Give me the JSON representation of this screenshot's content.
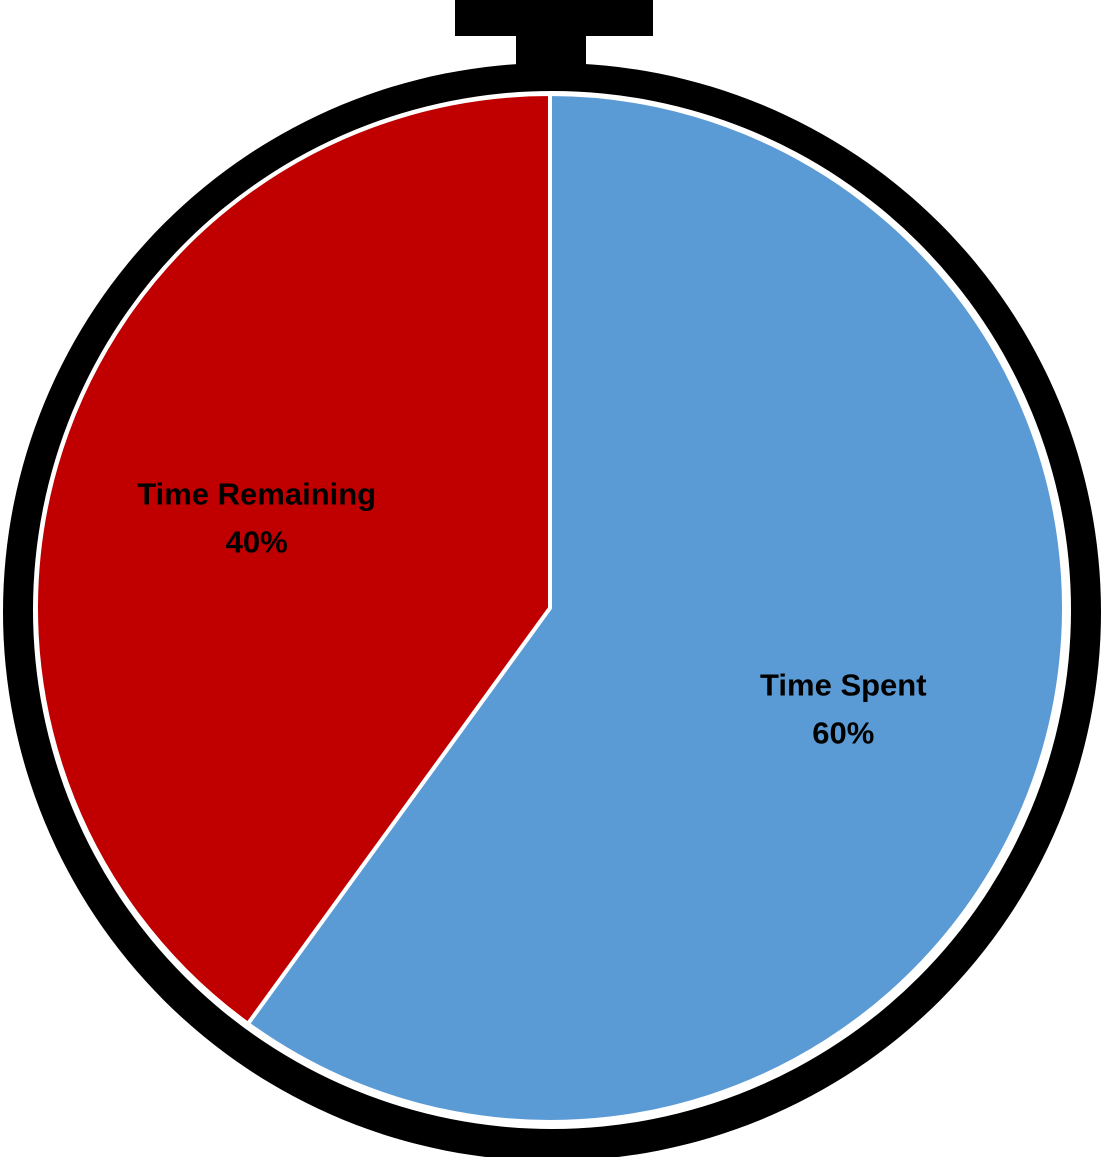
{
  "chart_data": {
    "type": "pie",
    "title": "",
    "legend": "none",
    "slices": [
      {
        "name": "Time Spent",
        "value": 60,
        "label": "60%",
        "color": "#5B9BD5"
      },
      {
        "name": "Time Remaining",
        "value": 40,
        "label": "40%",
        "color": "#C00000"
      }
    ],
    "frame": {
      "style": "stopwatch",
      "color": "#000000"
    },
    "slice_border_color": "#FFFFFF"
  }
}
